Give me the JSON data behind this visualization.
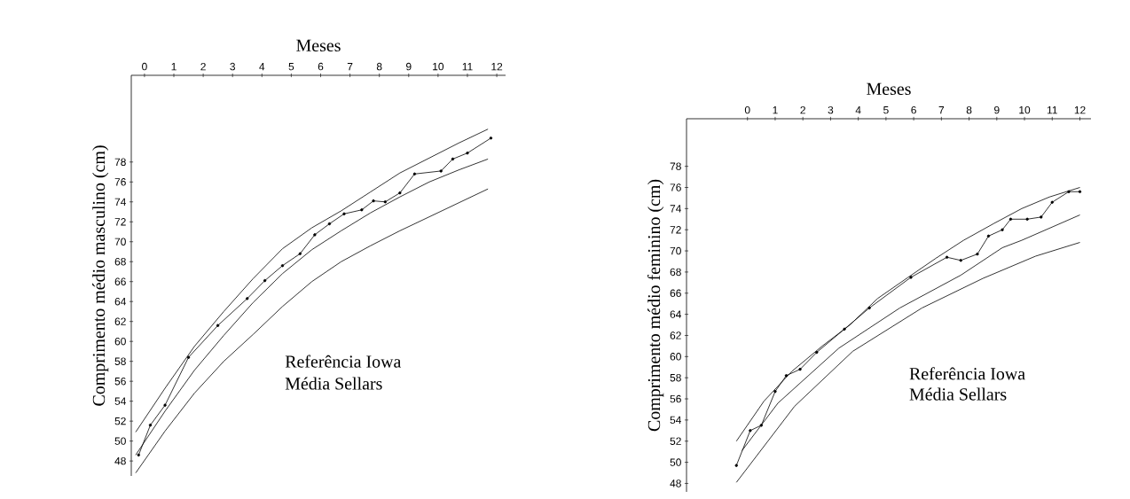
{
  "chart_data": [
    {
      "type": "line",
      "xlabel": "Meses",
      "ylabel": "Comprimento médio masculino (cm)",
      "annotations": [
        "Referência Iowa",
        "Média Sellars"
      ],
      "xlim": [
        -0.45,
        12.3
      ],
      "ylim": [
        46.5,
        86.7
      ],
      "xticks": [
        0,
        1,
        2,
        3,
        4,
        5,
        6,
        7,
        8,
        9,
        10,
        11,
        12
      ],
      "yticks": [
        48,
        50,
        52,
        54,
        56,
        58,
        60,
        62,
        64,
        66,
        68,
        70,
        72,
        74,
        76,
        78
      ],
      "series": [
        {
          "color": "#000000",
          "marker": "none",
          "x": [
            -0.3,
            0.7,
            1.7,
            2.7,
            3.7,
            4.7,
            5.7,
            6.7,
            7.7,
            8.7,
            9.7,
            10.7,
            11.7
          ],
          "values": [
            50.9,
            55.3,
            59.5,
            63.0,
            66.3,
            69.3,
            71.4,
            73.1,
            75.0,
            76.9,
            78.4,
            79.9,
            81.3
          ]
        },
        {
          "color": "#000000",
          "marker": "circle",
          "x": [
            -0.2,
            0.2,
            0.7,
            1.5,
            2.5,
            3.5,
            4.1,
            4.7,
            5.3,
            5.8,
            6.3,
            6.8,
            7.4,
            7.8,
            8.2,
            8.7,
            9.2,
            10.1,
            10.5,
            11.0,
            11.8
          ],
          "values": [
            48.6,
            51.6,
            53.6,
            58.4,
            61.6,
            64.3,
            66.1,
            67.6,
            68.8,
            70.7,
            71.8,
            72.8,
            73.2,
            74.1,
            74.0,
            74.9,
            76.8,
            77.1,
            78.3,
            78.9,
            80.4
          ]
        },
        {
          "color": "#000000",
          "marker": "none",
          "x": [
            -0.3,
            0.7,
            1.7,
            2.7,
            3.7,
            4.7,
            5.7,
            6.7,
            7.7,
            8.7,
            9.7,
            10.7,
            11.7
          ],
          "values": [
            48.6,
            53.0,
            57.1,
            60.6,
            63.9,
            66.8,
            69.2,
            71.1,
            72.9,
            74.5,
            76.0,
            77.2,
            78.3
          ]
        },
        {
          "color": "#000000",
          "marker": "none",
          "x": [
            -0.3,
            0.7,
            1.7,
            2.7,
            3.7,
            4.7,
            5.7,
            6.7,
            7.7,
            8.7,
            9.7,
            10.7,
            11.7
          ],
          "values": [
            46.8,
            51.0,
            54.8,
            58.0,
            60.7,
            63.5,
            66.0,
            68.0,
            69.6,
            71.1,
            72.5,
            73.9,
            75.3
          ]
        }
      ]
    },
    {
      "type": "line",
      "xlabel": "Meses",
      "ylabel": "Comprimento médio feminino (cm)",
      "annotations": [
        "Referência Iowa",
        "Média Sellars"
      ],
      "xlim": [
        -2.2,
        12.4
      ],
      "ylim": [
        47.2,
        82.5
      ],
      "xticks": [
        0,
        1,
        2,
        3,
        4,
        5,
        6,
        7,
        8,
        9,
        10,
        11,
        12
      ],
      "yticks": [
        48,
        50,
        52,
        54,
        56,
        58,
        60,
        62,
        64,
        66,
        68,
        70,
        72,
        74,
        76,
        78
      ],
      "series": [
        {
          "color": "#000000",
          "marker": "none",
          "x": [
            -0.4,
            0.6,
            1.6,
            2.7,
            3.7,
            4.7,
            5.8,
            6.8,
            7.8,
            8.9,
            9.9,
            10.9,
            12.0
          ],
          "values": [
            52.0,
            55.8,
            58.6,
            61.0,
            63.0,
            65.5,
            67.5,
            69.3,
            71.0,
            72.6,
            74.0,
            75.1,
            76.0
          ]
        },
        {
          "color": "#000000",
          "marker": "circle",
          "x": [
            -0.4,
            0.1,
            0.5,
            1.0,
            1.4,
            1.9,
            2.5,
            3.5,
            4.4,
            5.9,
            7.2,
            7.7,
            8.3,
            8.7,
            9.2,
            9.5,
            10.1,
            10.6,
            11.0,
            11.6,
            12.0
          ],
          "values": [
            49.7,
            53.0,
            53.5,
            56.7,
            58.2,
            58.8,
            60.4,
            62.6,
            64.6,
            67.5,
            69.4,
            69.1,
            69.7,
            71.4,
            72.0,
            73.0,
            73.0,
            73.2,
            74.6,
            75.6,
            75.6
          ]
        },
        {
          "color": "#000000",
          "marker": "none",
          "x": [
            -0.2,
            1.1,
            3.3,
            5.5,
            7.7,
            9.2,
            9.9,
            12.0
          ],
          "values": [
            51.1,
            55.6,
            60.8,
            64.6,
            67.7,
            70.3,
            71.0,
            73.4
          ]
        },
        {
          "color": "#000000",
          "marker": "none",
          "x": [
            -0.4,
            1.7,
            3.8,
            6.3,
            8.5,
            10.4,
            12.0
          ],
          "values": [
            48.1,
            55.3,
            60.5,
            64.6,
            67.4,
            69.5,
            70.8
          ]
        }
      ]
    }
  ]
}
